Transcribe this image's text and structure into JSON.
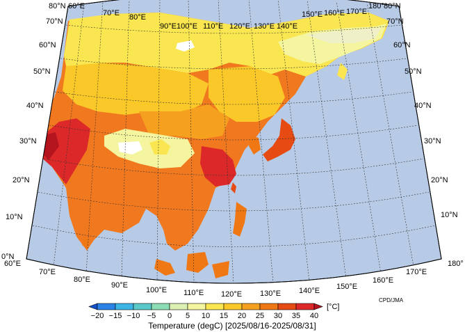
{
  "map": {
    "title": "Temperature (degC) [2025/08/16-2025/08/31]",
    "credit": "CPD/JMA",
    "unit": "[°C]",
    "ocean_color": "#b8cbe6",
    "lat_labels": [
      "0°N",
      "10°N",
      "20°N",
      "30°N",
      "40°N",
      "50°N",
      "60°N",
      "70°N",
      "80°N"
    ],
    "lon_labels": [
      "60°E",
      "70°E",
      "80°E",
      "90°E",
      "100°E",
      "110°E",
      "120°E",
      "130°E",
      "140°E",
      "150°E",
      "160°E",
      "170°E",
      "180°"
    ]
  },
  "colorbar": {
    "ticks": [
      "−20",
      "−15",
      "−10",
      "−5",
      "0",
      "5",
      "10",
      "15",
      "20",
      "25",
      "30",
      "35",
      "40"
    ],
    "colors": [
      "#1450c8",
      "#2a82e6",
      "#3cb4e6",
      "#5ac8c8",
      "#8cdcb4",
      "#dcf0b4",
      "#f5f5a0",
      "#fae650",
      "#fac828",
      "#f5a01e",
      "#f07814",
      "#e64b14",
      "#dc2828",
      "#b4141e"
    ]
  }
}
